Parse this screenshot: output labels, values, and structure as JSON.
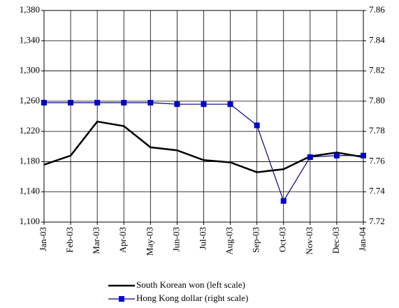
{
  "chart_data": {
    "type": "line",
    "categories": [
      "Jan-03",
      "Feb-03",
      "Mar-03",
      "Apr-03",
      "May-03",
      "Jun-03",
      "Jul-03",
      "Aug-03",
      "Sep-03",
      "Oct-03",
      "Nov-03",
      "Dec-03",
      "Jan-04"
    ],
    "series": [
      {
        "name": "South Korean won (left scale)",
        "color": "#000000",
        "values": [
          1176,
          1188,
          1233,
          1227,
          1199,
          1195,
          1182,
          1179,
          1166,
          1170,
          1187,
          1192,
          1186
        ]
      },
      {
        "name": "Hong Kong dollar (right scale)",
        "color": "#0000cc",
        "axis": "y2",
        "values": [
          7.799,
          7.799,
          7.799,
          7.799,
          7.799,
          7.798,
          7.798,
          7.798,
          7.784,
          7.734,
          7.763,
          7.764,
          7.764
        ]
      }
    ],
    "ylim": [
      1100,
      1380
    ],
    "yticks": [
      {
        "value": 1100,
        "label": "1,100"
      },
      {
        "value": 1140,
        "label": "1,140"
      },
      {
        "value": 1180,
        "label": "1,180"
      },
      {
        "value": 1220,
        "label": "1,220"
      },
      {
        "value": 1260,
        "label": "1,260"
      },
      {
        "value": 1300,
        "label": "1,300"
      },
      {
        "value": 1340,
        "label": "1,340"
      },
      {
        "value": 1380,
        "label": "1,380"
      }
    ],
    "y2lim": [
      7.72,
      7.86
    ],
    "y2ticks": [
      7.72,
      7.74,
      7.76,
      7.78,
      {
        "value": 7.8,
        "label": "7.80"
      },
      7.82,
      7.84,
      7.86
    ],
    "grid": true,
    "legend": "bottom"
  }
}
